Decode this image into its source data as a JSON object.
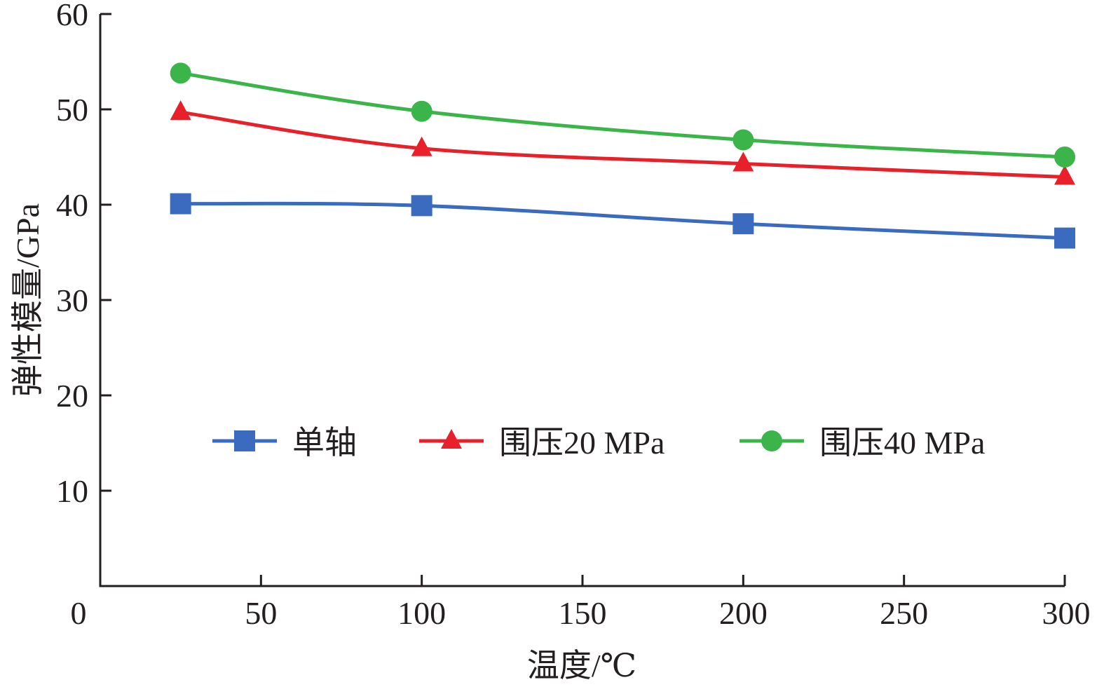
{
  "chart_data": {
    "type": "line",
    "title": "",
    "xlabel": "温度/℃",
    "ylabel": "弹性模量/GPa",
    "xlim": [
      0,
      300
    ],
    "ylim": [
      0,
      60
    ],
    "xticks": [
      "0",
      "50",
      "100",
      "150",
      "200",
      "250",
      "300"
    ],
    "yticks": [
      "10",
      "20",
      "30",
      "40",
      "50",
      "60"
    ],
    "grid": false,
    "legend_placement": "center",
    "x": [
      25,
      100,
      200,
      300
    ],
    "series": [
      {
        "name": "单轴",
        "values": [
          40.1,
          39.9,
          38.0,
          36.5
        ],
        "color": "#3a6bbf",
        "marker": "square"
      },
      {
        "name": "围压20 MPa",
        "values": [
          49.7,
          45.9,
          44.3,
          42.9
        ],
        "color": "#e8202a",
        "marker": "triangle"
      },
      {
        "name": "围压40 MPa",
        "values": [
          53.8,
          49.8,
          46.8,
          45.0
        ],
        "color": "#3bb54a",
        "marker": "circle"
      }
    ]
  }
}
